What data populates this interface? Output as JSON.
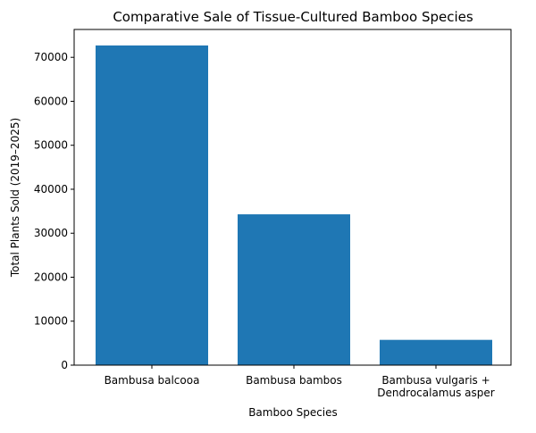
{
  "chart_data": {
    "type": "bar",
    "title": "Comparative Sale of Tissue-Cultured Bamboo Species",
    "xlabel": "Bamboo Species",
    "ylabel": "Total Plants Sold (2019–2025)",
    "categories": [
      [
        "Bambusa balcooa"
      ],
      [
        "Bambusa bambos"
      ],
      [
        "Bambusa vulgaris +",
        "Dendrocalamus asper"
      ]
    ],
    "values": [
      72700,
      34300,
      5750
    ],
    "ylim": [
      0,
      76335
    ],
    "yticks": [
      0,
      10000,
      20000,
      30000,
      40000,
      50000,
      60000,
      70000
    ],
    "bar_color": "#1f77b4",
    "grid": false
  }
}
